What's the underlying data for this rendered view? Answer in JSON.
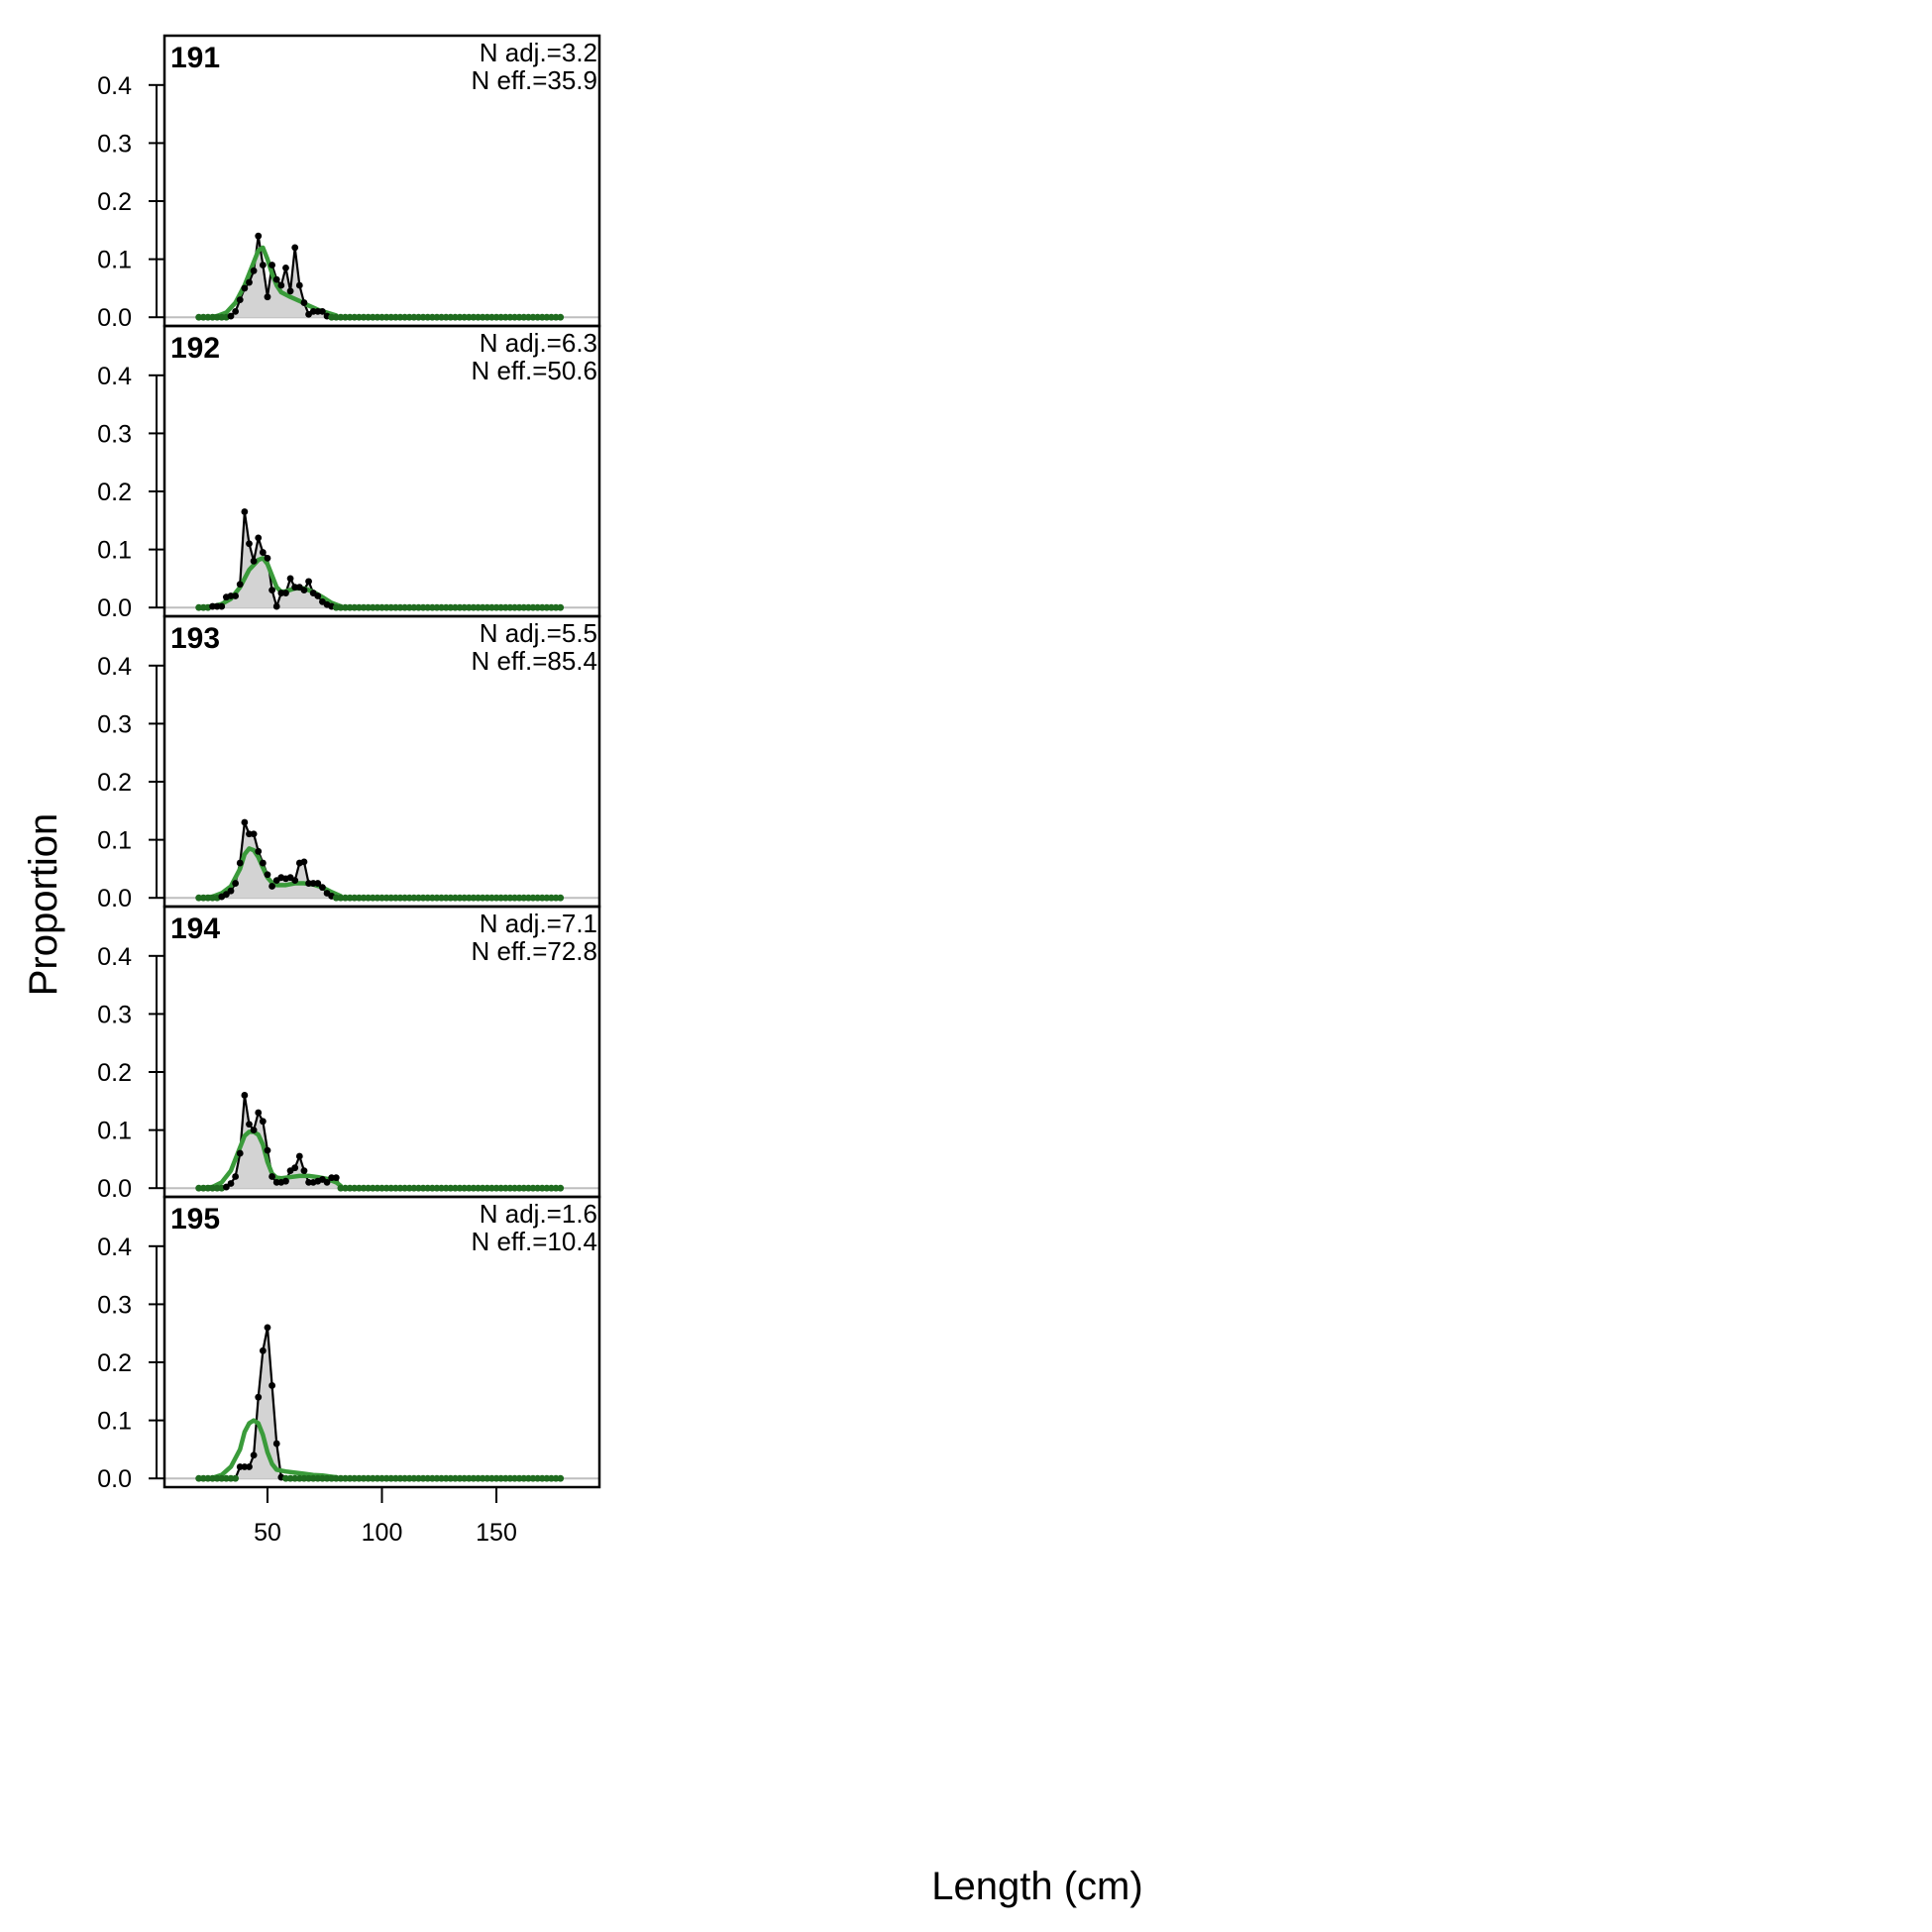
{
  "chart_data": {
    "type": "line",
    "xlabel": "Length (cm)",
    "ylabel": "Proportion",
    "xlim": [
      5,
      195
    ],
    "ylim": [
      -0.015,
      0.485
    ],
    "x_ticks": [
      50,
      100,
      150
    ],
    "y_ticks": [
      0.0,
      0.1,
      0.2,
      0.3,
      0.4
    ],
    "y_tick_labels": [
      "0.0",
      "0.1",
      "0.2",
      "0.3",
      "0.4"
    ],
    "bin_start": 20,
    "bin_width": 2,
    "bin_count": 80,
    "colors": {
      "observed_line": "#000000",
      "observed_fill": "#d3d3d3",
      "expected_line": "#3a9b3a",
      "zero_line": "#bebebe",
      "zero_points": "#1f6b1f"
    },
    "panels": [
      {
        "id": "191",
        "n_adj": "N adj.=3.2",
        "n_eff": "N eff.=35.9",
        "observed": [
          [
            20,
            0
          ],
          [
            22,
            0
          ],
          [
            24,
            0
          ],
          [
            26,
            0
          ],
          [
            28,
            0
          ],
          [
            30,
            0
          ],
          [
            32,
            0
          ],
          [
            34,
            0.002
          ],
          [
            36,
            0.01
          ],
          [
            38,
            0.03
          ],
          [
            40,
            0.05
          ],
          [
            42,
            0.06
          ],
          [
            44,
            0.08
          ],
          [
            46,
            0.14
          ],
          [
            48,
            0.09
          ],
          [
            50,
            0.035
          ],
          [
            52,
            0.09
          ],
          [
            54,
            0.065
          ],
          [
            56,
            0.055
          ],
          [
            58,
            0.085
          ],
          [
            60,
            0.045
          ],
          [
            62,
            0.12
          ],
          [
            64,
            0.055
          ],
          [
            66,
            0.025
          ],
          [
            68,
            0.005
          ],
          [
            70,
            0.01
          ],
          [
            72,
            0.01
          ],
          [
            74,
            0.01
          ],
          [
            76,
            0.002
          ],
          [
            78,
            0
          ]
        ],
        "expected": [
          [
            20,
            0
          ],
          [
            24,
            0
          ],
          [
            28,
            0.002
          ],
          [
            32,
            0.008
          ],
          [
            36,
            0.025
          ],
          [
            40,
            0.055
          ],
          [
            44,
            0.095
          ],
          [
            46,
            0.115
          ],
          [
            48,
            0.12
          ],
          [
            50,
            0.1
          ],
          [
            52,
            0.075
          ],
          [
            54,
            0.055
          ],
          [
            56,
            0.043
          ],
          [
            60,
            0.035
          ],
          [
            64,
            0.028
          ],
          [
            68,
            0.02
          ],
          [
            72,
            0.013
          ],
          [
            76,
            0.008
          ],
          [
            80,
            0.003
          ]
        ]
      },
      {
        "id": "192",
        "n_adj": "N adj.=6.3",
        "n_eff": "N eff.=50.6",
        "observed": [
          [
            20,
            0
          ],
          [
            22,
            0
          ],
          [
            24,
            0
          ],
          [
            26,
            0.002
          ],
          [
            28,
            0.002
          ],
          [
            30,
            0.002
          ],
          [
            32,
            0.018
          ],
          [
            34,
            0.02
          ],
          [
            36,
            0.02
          ],
          [
            38,
            0.04
          ],
          [
            40,
            0.165
          ],
          [
            42,
            0.11
          ],
          [
            44,
            0.08
          ],
          [
            46,
            0.12
          ],
          [
            48,
            0.095
          ],
          [
            50,
            0.085
          ],
          [
            52,
            0.03
          ],
          [
            54,
            0.002
          ],
          [
            56,
            0.025
          ],
          [
            58,
            0.025
          ],
          [
            60,
            0.05
          ],
          [
            62,
            0.035
          ],
          [
            64,
            0.035
          ],
          [
            66,
            0.03
          ],
          [
            68,
            0.045
          ],
          [
            70,
            0.025
          ],
          [
            72,
            0.02
          ],
          [
            74,
            0.01
          ],
          [
            76,
            0.005
          ],
          [
            78,
            0.002
          ],
          [
            80,
            0
          ]
        ],
        "expected": [
          [
            20,
            0
          ],
          [
            26,
            0.002
          ],
          [
            30,
            0.006
          ],
          [
            34,
            0.015
          ],
          [
            38,
            0.035
          ],
          [
            42,
            0.065
          ],
          [
            46,
            0.082
          ],
          [
            48,
            0.085
          ],
          [
            50,
            0.075
          ],
          [
            52,
            0.055
          ],
          [
            54,
            0.035
          ],
          [
            56,
            0.027
          ],
          [
            58,
            0.028
          ],
          [
            62,
            0.033
          ],
          [
            66,
            0.033
          ],
          [
            70,
            0.027
          ],
          [
            74,
            0.018
          ],
          [
            78,
            0.008
          ],
          [
            82,
            0.002
          ]
        ]
      },
      {
        "id": "193",
        "n_adj": "N adj.=5.5",
        "n_eff": "N eff.=85.4",
        "observed": [
          [
            20,
            0
          ],
          [
            22,
            0
          ],
          [
            24,
            0
          ],
          [
            26,
            0
          ],
          [
            28,
            0
          ],
          [
            30,
            0.002
          ],
          [
            32,
            0.006
          ],
          [
            34,
            0.012
          ],
          [
            36,
            0.025
          ],
          [
            38,
            0.06
          ],
          [
            40,
            0.13
          ],
          [
            42,
            0.11
          ],
          [
            44,
            0.11
          ],
          [
            46,
            0.08
          ],
          [
            48,
            0.06
          ],
          [
            50,
            0.04
          ],
          [
            52,
            0.02
          ],
          [
            54,
            0.03
          ],
          [
            56,
            0.035
          ],
          [
            58,
            0.033
          ],
          [
            60,
            0.035
          ],
          [
            62,
            0.03
          ],
          [
            64,
            0.06
          ],
          [
            66,
            0.062
          ],
          [
            68,
            0.025
          ],
          [
            70,
            0.025
          ],
          [
            72,
            0.025
          ],
          [
            74,
            0.018
          ],
          [
            76,
            0.008
          ],
          [
            78,
            0.003
          ],
          [
            80,
            0
          ]
        ],
        "expected": [
          [
            20,
            0
          ],
          [
            26,
            0.002
          ],
          [
            30,
            0.008
          ],
          [
            34,
            0.02
          ],
          [
            38,
            0.05
          ],
          [
            40,
            0.075
          ],
          [
            42,
            0.085
          ],
          [
            44,
            0.082
          ],
          [
            46,
            0.07
          ],
          [
            48,
            0.052
          ],
          [
            50,
            0.035
          ],
          [
            52,
            0.026
          ],
          [
            54,
            0.022
          ],
          [
            58,
            0.022
          ],
          [
            62,
            0.025
          ],
          [
            66,
            0.025
          ],
          [
            70,
            0.023
          ],
          [
            74,
            0.018
          ],
          [
            78,
            0.01
          ],
          [
            82,
            0.003
          ]
        ]
      },
      {
        "id": "194",
        "n_adj": "N adj.=7.1",
        "n_eff": "N eff.=72.8",
        "observed": [
          [
            20,
            0
          ],
          [
            22,
            0
          ],
          [
            24,
            0
          ],
          [
            26,
            0
          ],
          [
            28,
            0
          ],
          [
            30,
            0
          ],
          [
            32,
            0.002
          ],
          [
            34,
            0.008
          ],
          [
            36,
            0.02
          ],
          [
            38,
            0.06
          ],
          [
            40,
            0.16
          ],
          [
            42,
            0.11
          ],
          [
            44,
            0.1
          ],
          [
            46,
            0.13
          ],
          [
            48,
            0.115
          ],
          [
            50,
            0.065
          ],
          [
            52,
            0.02
          ],
          [
            54,
            0.01
          ],
          [
            56,
            0.01
          ],
          [
            58,
            0.012
          ],
          [
            60,
            0.03
          ],
          [
            62,
            0.035
          ],
          [
            64,
            0.055
          ],
          [
            66,
            0.03
          ],
          [
            68,
            0.01
          ],
          [
            70,
            0.01
          ],
          [
            72,
            0.012
          ],
          [
            74,
            0.015
          ],
          [
            76,
            0.01
          ],
          [
            78,
            0.018
          ],
          [
            80,
            0.018
          ],
          [
            82,
            0
          ]
        ],
        "expected": [
          [
            20,
            0
          ],
          [
            26,
            0.002
          ],
          [
            30,
            0.01
          ],
          [
            34,
            0.03
          ],
          [
            38,
            0.07
          ],
          [
            40,
            0.09
          ],
          [
            42,
            0.097
          ],
          [
            44,
            0.097
          ],
          [
            46,
            0.092
          ],
          [
            48,
            0.075
          ],
          [
            50,
            0.045
          ],
          [
            52,
            0.025
          ],
          [
            54,
            0.018
          ],
          [
            56,
            0.017
          ],
          [
            60,
            0.019
          ],
          [
            64,
            0.021
          ],
          [
            68,
            0.021
          ],
          [
            72,
            0.019
          ],
          [
            76,
            0.016
          ],
          [
            80,
            0.01
          ],
          [
            82,
            0.004
          ]
        ]
      },
      {
        "id": "195",
        "n_adj": "N adj.=1.6",
        "n_eff": "N eff.=10.4",
        "observed": [
          [
            20,
            0
          ],
          [
            22,
            0
          ],
          [
            24,
            0
          ],
          [
            26,
            0
          ],
          [
            28,
            0
          ],
          [
            30,
            0
          ],
          [
            32,
            0
          ],
          [
            34,
            0
          ],
          [
            36,
            0
          ],
          [
            38,
            0.02
          ],
          [
            40,
            0.02
          ],
          [
            42,
            0.02
          ],
          [
            44,
            0.04
          ],
          [
            46,
            0.14
          ],
          [
            48,
            0.22
          ],
          [
            50,
            0.26
          ],
          [
            52,
            0.16
          ],
          [
            54,
            0.06
          ],
          [
            56,
            0.002
          ],
          [
            58,
            0
          ]
        ],
        "expected": [
          [
            20,
            0
          ],
          [
            26,
            0.001
          ],
          [
            30,
            0.006
          ],
          [
            34,
            0.02
          ],
          [
            38,
            0.05
          ],
          [
            40,
            0.08
          ],
          [
            42,
            0.095
          ],
          [
            44,
            0.1
          ],
          [
            46,
            0.095
          ],
          [
            48,
            0.075
          ],
          [
            50,
            0.045
          ],
          [
            52,
            0.025
          ],
          [
            54,
            0.015
          ],
          [
            58,
            0.012
          ],
          [
            62,
            0.01
          ],
          [
            66,
            0.008
          ],
          [
            70,
            0.006
          ],
          [
            74,
            0.005
          ],
          [
            78,
            0.003
          ],
          [
            80,
            0.002
          ]
        ]
      }
    ]
  }
}
